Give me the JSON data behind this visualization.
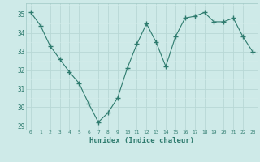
{
  "x": [
    0,
    1,
    2,
    3,
    4,
    5,
    6,
    7,
    8,
    9,
    10,
    11,
    12,
    13,
    14,
    15,
    16,
    17,
    18,
    19,
    20,
    21,
    22,
    23
  ],
  "y": [
    35.1,
    34.4,
    33.3,
    32.6,
    31.9,
    31.3,
    30.2,
    29.2,
    29.7,
    30.5,
    32.1,
    33.4,
    34.5,
    33.5,
    32.2,
    33.8,
    34.8,
    34.9,
    35.1,
    34.6,
    34.6,
    34.8,
    33.8,
    33.0
  ],
  "line_color": "#2e7b6e",
  "marker": "+",
  "marker_size": 4,
  "bg_color": "#ceeae8",
  "grid_major_color": "#b8d8d5",
  "grid_minor_color": "#d4eceb",
  "xlabel": "Humidex (Indice chaleur)",
  "ylim": [
    28.8,
    35.6
  ],
  "xlim": [
    -0.5,
    23.5
  ],
  "yticks": [
    29,
    30,
    31,
    32,
    33,
    34,
    35
  ],
  "xticks": [
    0,
    1,
    2,
    3,
    4,
    5,
    6,
    7,
    8,
    9,
    10,
    11,
    12,
    13,
    14,
    15,
    16,
    17,
    18,
    19,
    20,
    21,
    22,
    23
  ]
}
